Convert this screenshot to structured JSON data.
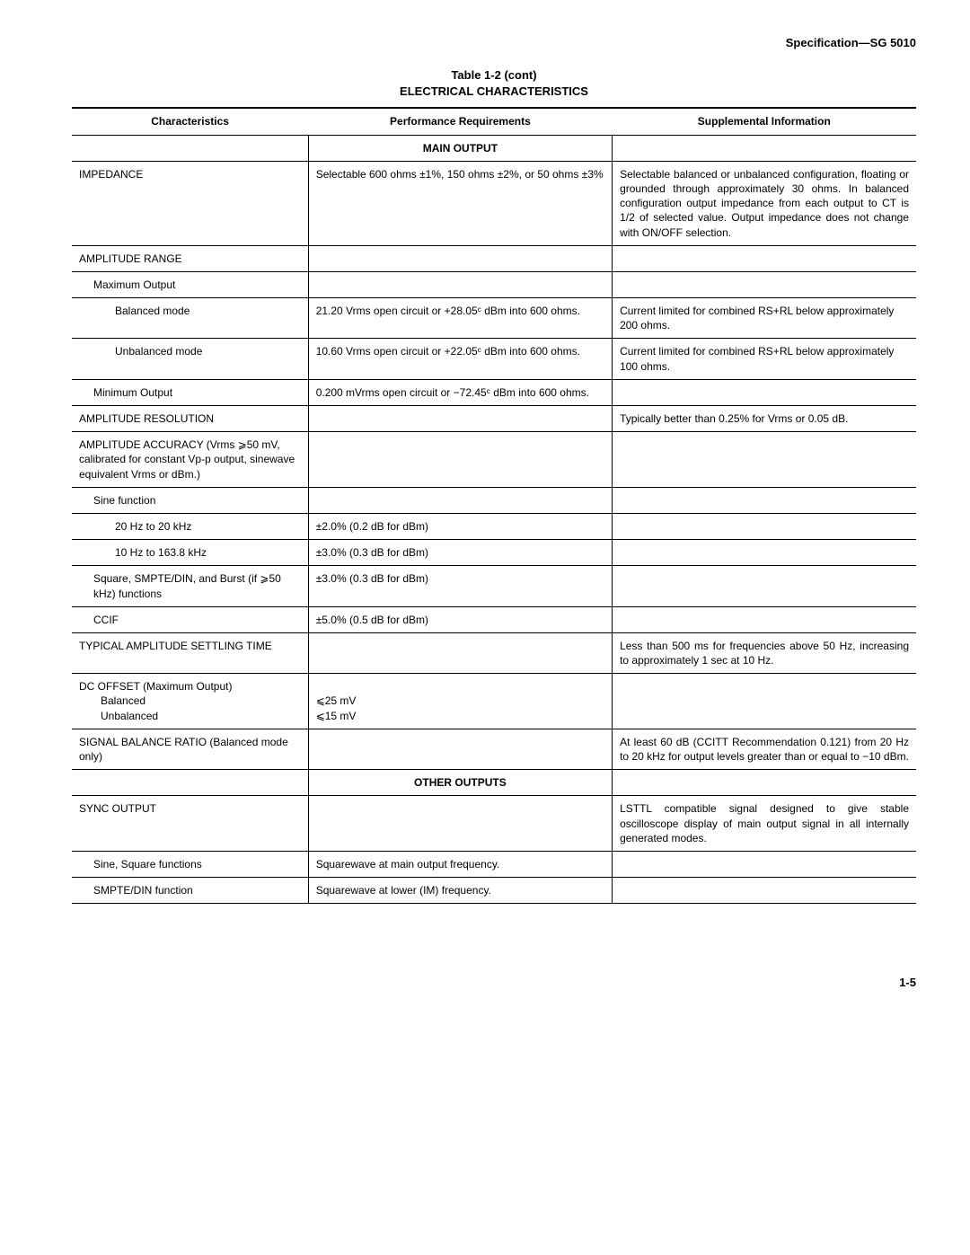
{
  "header": {
    "spec": "Specification—SG 5010"
  },
  "table_title": {
    "line1": "Table 1-2 (cont)",
    "line2": "ELECTRICAL CHARACTERISTICS"
  },
  "columns": {
    "char": "Characteristics",
    "perf": "Performance Requirements",
    "supp": "Supplemental Information"
  },
  "sections": {
    "main_output": "MAIN OUTPUT",
    "other_outputs": "OTHER OUTPUTS"
  },
  "rows": {
    "impedance": {
      "char": "IMPEDANCE",
      "perf": "Selectable 600 ohms ±1%, 150 ohms ±2%, or 50 ohms ±3%",
      "supp": "Selectable balanced or unbalanced configuration, floating or grounded through approximately 30 ohms. In balanced configuration output impedance from each output to CT is 1/2 of selected value. Output impedance does not change with ON/OFF selection."
    },
    "amp_range": {
      "char": "AMPLITUDE RANGE",
      "perf": "",
      "supp": ""
    },
    "max_output": {
      "char": "Maximum Output",
      "perf": "",
      "supp": ""
    },
    "balanced_mode": {
      "char": "Balanced mode",
      "perf": "21.20 Vrms open circuit or +28.05ᶜ dBm into 600 ohms.",
      "supp": "Current limited for combined RS+RL below approximately 200 ohms."
    },
    "unbalanced_mode": {
      "char": "Unbalanced mode",
      "perf": "10.60 Vrms open circuit or +22.05ᶜ dBm into 600 ohms.",
      "supp": "Current limited for combined RS+RL below approximately 100 ohms."
    },
    "min_output": {
      "char": "Minimum Output",
      "perf": "0.200 mVrms open circuit or −72.45ᶜ dBm into 600 ohms.",
      "supp": ""
    },
    "amp_resolution": {
      "char": "AMPLITUDE RESOLUTION",
      "perf": "",
      "supp": "Typically better than 0.25% for Vrms or 0.05 dB."
    },
    "amp_accuracy": {
      "char": "AMPLITUDE ACCURACY (Vrms ⩾50 mV, calibrated for constant Vp-p output, sinewave equivalent Vrms or dBm.)",
      "perf": "",
      "supp": ""
    },
    "sine_function": {
      "char": "Sine function",
      "perf": "",
      "supp": ""
    },
    "sine_20hz_20khz": {
      "char": "20 Hz to 20 kHz",
      "perf": "±2.0% (0.2 dB for dBm)",
      "supp": ""
    },
    "sine_10hz_163khz": {
      "char": "10 Hz to 163.8 kHz",
      "perf": "±3.0% (0.3 dB for dBm)",
      "supp": ""
    },
    "square_smpte": {
      "char": "Square, SMPTE/DIN, and Burst (if ⩾50 kHz) functions",
      "perf": "±3.0% (0.3 dB for dBm)",
      "supp": ""
    },
    "ccif": {
      "char": "CCIF",
      "perf": "±5.0% (0.5 dB for dBm)",
      "supp": ""
    },
    "settling": {
      "char": "TYPICAL AMPLITUDE SETTLING TIME",
      "perf": "",
      "supp": "Less than 500 ms for frequencies above 50 Hz, increasing to approximately 1 sec at 10 Hz."
    },
    "dc_offset_label": {
      "char": "DC OFFSET (Maximum Output)"
    },
    "dc_offset_bal": {
      "char": "Balanced",
      "perf": "⩽25 mV"
    },
    "dc_offset_unbal": {
      "char": "Unbalanced",
      "perf": "⩽15 mV"
    },
    "sig_balance": {
      "char": "SIGNAL BALANCE RATIO (Balanced mode only)",
      "perf": "",
      "supp": "At least 60 dB (CCITT Recommendation 0.121) from 20 Hz to 20 kHz for output levels greater than or equal to −10 dBm."
    },
    "sync_output": {
      "char": "SYNC OUTPUT",
      "perf": "",
      "supp": "LSTTL compatible signal designed to give stable oscilloscope display of main output signal in all internally generated modes."
    },
    "sine_square_fn": {
      "char": "Sine, Square functions",
      "perf": "Squarewave at main output frequency.",
      "supp": ""
    },
    "smpte_din_fn": {
      "char": "SMPTE/DIN function",
      "perf": "Squarewave at lower (IM) frequency.",
      "supp": ""
    }
  },
  "page_number": "1-5"
}
